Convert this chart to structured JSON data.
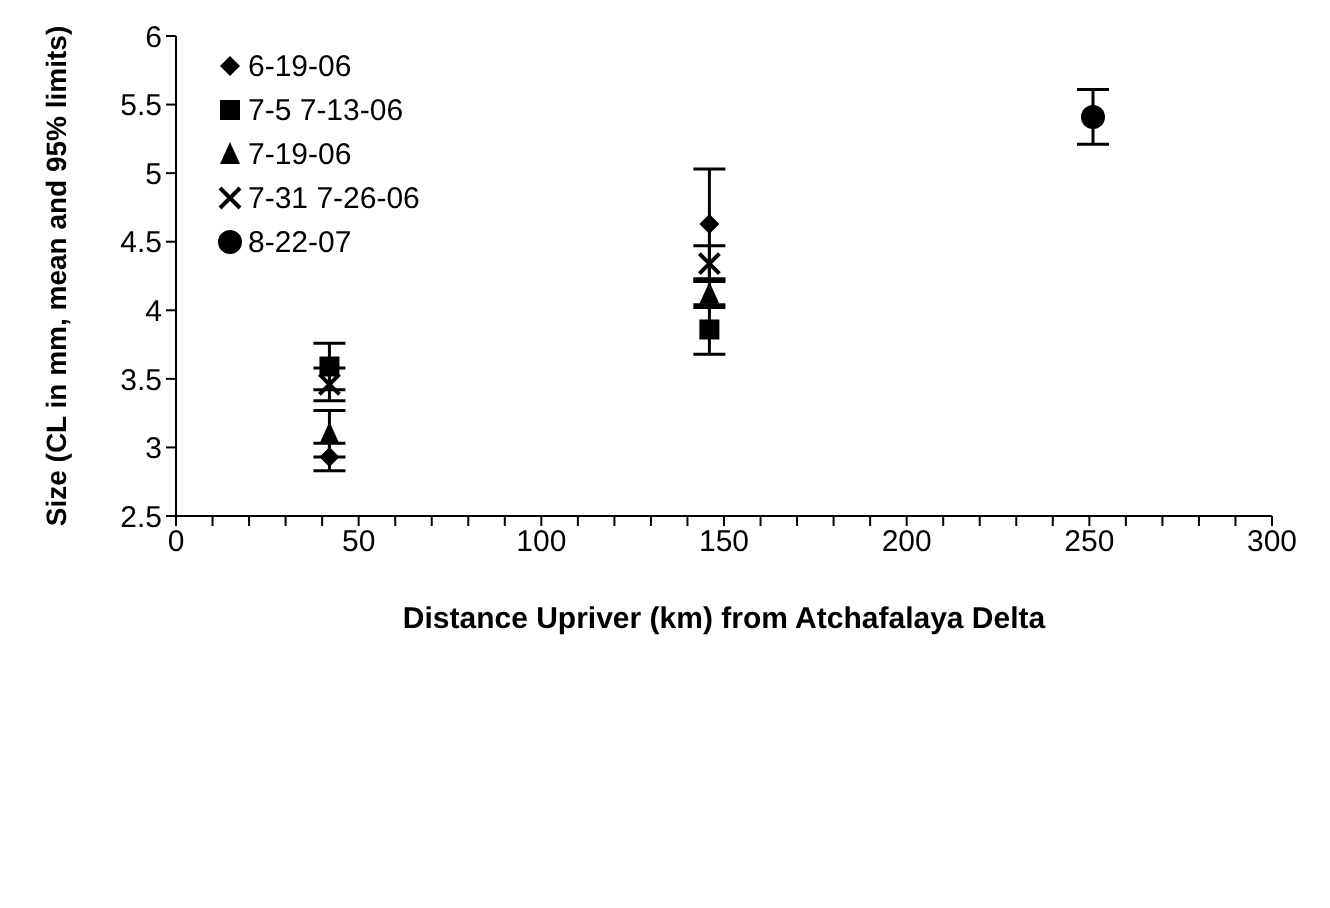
{
  "chart_data": {
    "type": "scatter",
    "xlabel": "Distance Upriver (km) from Atchafalaya Delta",
    "ylabel": "Size (CL in mm, mean and 95% limits)",
    "xlim": [
      0,
      300
    ],
    "xticks": [
      0,
      {
        "value": 10,
        "label": null
      },
      {
        "value": 20,
        "label": null
      },
      {
        "value": 30,
        "label": null
      },
      {
        "value": 40,
        "label": null
      },
      50,
      {
        "value": 60,
        "label": null
      },
      {
        "value": 70,
        "label": null
      },
      {
        "value": 80,
        "label": null
      },
      {
        "value": 90,
        "label": null
      },
      100,
      {
        "value": 110,
        "label": null
      },
      {
        "value": 120,
        "label": null
      },
      {
        "value": 130,
        "label": null
      },
      {
        "value": 140,
        "label": null
      },
      150,
      {
        "value": 160,
        "label": null
      },
      {
        "value": 170,
        "label": null
      },
      {
        "value": 180,
        "label": null
      },
      {
        "value": 190,
        "label": null
      },
      200,
      {
        "value": 210,
        "label": null
      },
      {
        "value": 220,
        "label": null
      },
      {
        "value": 230,
        "label": null
      },
      {
        "value": 240,
        "label": null
      },
      250,
      {
        "value": 260,
        "label": null
      },
      {
        "value": 270,
        "label": null
      },
      {
        "value": 280,
        "label": null
      },
      {
        "value": 290,
        "label": null
      },
      300
    ],
    "ylim": [
      2.5,
      6
    ],
    "yticks": [
      2.5,
      3,
      3.5,
      4,
      4.5,
      5,
      5.5,
      6
    ],
    "legend": "top left",
    "series": [
      {
        "name": "6-19-06",
        "color": "#000000",
        "marker": "diamond",
        "x": [
          42,
          146
        ],
        "values": [
          2.93,
          4.63
        ],
        "errors": [
          0.1,
          0.4
        ]
      },
      {
        "name": "7-5 7-13-06",
        "color": "#000000",
        "marker": "square",
        "x": [
          42,
          146
        ],
        "values": [
          3.59,
          3.86
        ],
        "errors": [
          0.17,
          0.18
        ]
      },
      {
        "name": "7-19-06",
        "color": "#000000",
        "marker": "triangle",
        "x": [
          42,
          146
        ],
        "values": [
          3.1,
          4.12
        ],
        "errors": [
          0.17,
          0.1
        ]
      },
      {
        "name": "7-31 7-26-06",
        "color": "#000000",
        "marker": "cross",
        "x": [
          42,
          146
        ],
        "values": [
          3.46,
          4.34
        ],
        "errors": [
          0.12,
          0.13
        ]
      },
      {
        "name": "8-22-07",
        "color": "#000000",
        "marker": "circle",
        "x": [
          251
        ],
        "values": [
          5.41
        ],
        "errors": [
          0.2
        ]
      }
    ]
  }
}
